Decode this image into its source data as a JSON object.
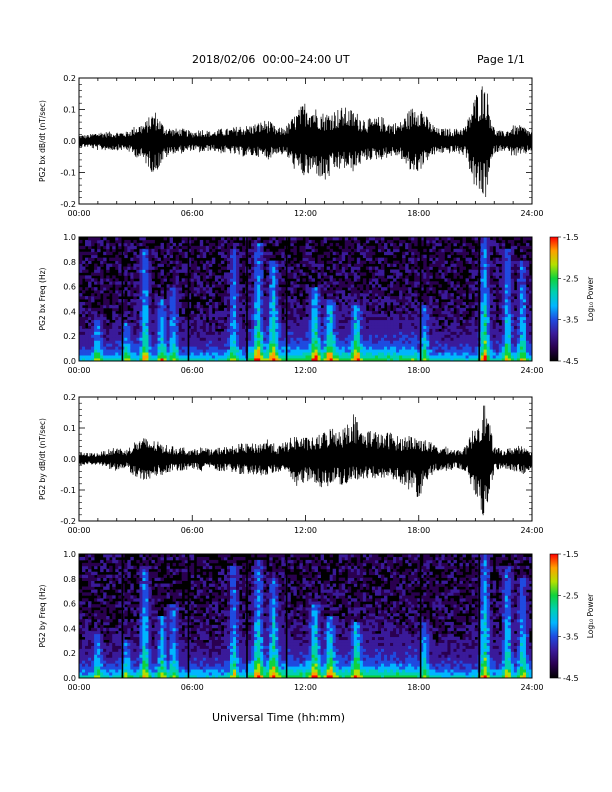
{
  "header": {
    "title": "2018/02/06  00:00–24:00 UT",
    "page": "Page 1/1"
  },
  "footer": {
    "xlabel": "Universal Time (hh:mm)"
  },
  "colors": {
    "trace": "#000000",
    "colormap": [
      "#000000",
      "#2a0050",
      "#3a1a9a",
      "#1f4ae0",
      "#00b6ff",
      "#00d0b0",
      "#10d23c",
      "#b4e000",
      "#ffa000",
      "#ff0000"
    ]
  },
  "chart_data": [
    {
      "type": "line",
      "id": "bx",
      "ylabel": "PG2 bx dB/dt (nT/sec)",
      "xlim": [
        0,
        24
      ],
      "ylim": [
        -0.2,
        0.2
      ],
      "x_ticks": [
        "00:00",
        "06:00",
        "12:00",
        "18:00",
        "24:00"
      ],
      "y_ticks": [
        "0.2",
        "0.1",
        "0.0",
        "-0.1",
        "-0.2"
      ],
      "series": [
        {
          "x": [
            0,
            0.5,
            1,
            1.5,
            2,
            2.5,
            3,
            3.5,
            4,
            4.5,
            5,
            5.5,
            6,
            6.5,
            7,
            7.5,
            8,
            8.5,
            9,
            9.5,
            10,
            10.5,
            11,
            11.5,
            12,
            12.5,
            13,
            13.5,
            14,
            14.5,
            15,
            15.5,
            16,
            16.5,
            17,
            17.5,
            18,
            18.5,
            19,
            19.5,
            20,
            20.5,
            21,
            21.5,
            22,
            22.5,
            23,
            23.5,
            24
          ],
          "upper": [
            0.02,
            0.02,
            0.03,
            0.03,
            0.03,
            0.03,
            0.05,
            0.06,
            0.1,
            0.05,
            0.04,
            0.04,
            0.03,
            0.04,
            0.03,
            0.04,
            0.04,
            0.05,
            0.05,
            0.06,
            0.07,
            0.04,
            0.05,
            0.09,
            0.13,
            0.11,
            0.09,
            0.1,
            0.11,
            0.1,
            0.08,
            0.07,
            0.08,
            0.06,
            0.06,
            0.1,
            0.13,
            0.07,
            0.04,
            0.04,
            0.04,
            0.05,
            0.15,
            0.2,
            0.04,
            0.03,
            0.05,
            0.05,
            0.03
          ],
          "lower": [
            -0.02,
            -0.02,
            -0.03,
            -0.03,
            -0.03,
            -0.03,
            -0.05,
            -0.07,
            -0.11,
            -0.06,
            -0.04,
            -0.04,
            -0.03,
            -0.04,
            -0.03,
            -0.04,
            -0.04,
            -0.05,
            -0.05,
            -0.05,
            -0.06,
            -0.04,
            -0.05,
            -0.1,
            -0.12,
            -0.1,
            -0.14,
            -0.1,
            -0.09,
            -0.1,
            -0.07,
            -0.06,
            -0.06,
            -0.05,
            -0.05,
            -0.1,
            -0.1,
            -0.06,
            -0.04,
            -0.04,
            -0.04,
            -0.05,
            -0.16,
            -0.2,
            -0.04,
            -0.03,
            -0.05,
            -0.05,
            -0.03
          ]
        }
      ]
    },
    {
      "type": "heatmap",
      "id": "bx-spec",
      "ylabel": "PG2 bx Freq (Hz)",
      "xlim": [
        0,
        24
      ],
      "ylim": [
        0,
        1
      ],
      "x_ticks": [
        "00:00",
        "06:00",
        "12:00",
        "18:00",
        "24:00"
      ],
      "y_ticks": [
        "1.0",
        "0.8",
        "0.6",
        "0.4",
        "0.2",
        "0.0"
      ],
      "colorbar": {
        "label": "Log₁₀ Power",
        "ticks": [
          "-1.5",
          "-2.5",
          "-3.5",
          "-4.5"
        ],
        "range": [
          -4.5,
          -1.5
        ]
      },
      "bursts": [
        {
          "t": 1.0,
          "intensity": 0.5,
          "height": 0.35
        },
        {
          "t": 2.5,
          "intensity": 0.5,
          "height": 0.3
        },
        {
          "t": 3.5,
          "intensity": 0.85,
          "height": 0.9
        },
        {
          "t": 4.4,
          "intensity": 0.7,
          "height": 0.5
        },
        {
          "t": 5.0,
          "intensity": 0.6,
          "height": 0.6
        },
        {
          "t": 8.2,
          "intensity": 0.7,
          "height": 0.9
        },
        {
          "t": 9.5,
          "intensity": 0.9,
          "height": 0.95
        },
        {
          "t": 10.3,
          "intensity": 0.85,
          "height": 0.8
        },
        {
          "t": 12.5,
          "intensity": 0.85,
          "height": 0.6
        },
        {
          "t": 13.3,
          "intensity": 0.8,
          "height": 0.5
        },
        {
          "t": 14.7,
          "intensity": 0.75,
          "height": 0.45
        },
        {
          "t": 18.3,
          "intensity": 0.6,
          "height": 0.45
        },
        {
          "t": 21.5,
          "intensity": 1.0,
          "height": 1.0
        },
        {
          "t": 22.7,
          "intensity": 0.8,
          "height": 0.9
        },
        {
          "t": 23.5,
          "intensity": 0.75,
          "height": 0.8
        }
      ],
      "gaps": [
        2.3,
        5.8,
        8.9,
        11.0,
        18.1,
        21.2
      ]
    },
    {
      "type": "line",
      "id": "by",
      "ylabel": "PG2 by dB/dt (nT/sec)",
      "xlim": [
        0,
        24
      ],
      "ylim": [
        -0.2,
        0.2
      ],
      "x_ticks": [
        "00:00",
        "06:00",
        "12:00",
        "18:00",
        "24:00"
      ],
      "y_ticks": [
        "0.2",
        "0.1",
        "0.0",
        "-0.1",
        "-0.2"
      ],
      "series": [
        {
          "x": [
            0,
            0.5,
            1,
            1.5,
            2,
            2.5,
            3,
            3.5,
            4,
            4.5,
            5,
            5.5,
            6,
            6.5,
            7,
            7.5,
            8,
            8.5,
            9,
            9.5,
            10,
            10.5,
            11,
            11.5,
            12,
            12.5,
            13,
            13.5,
            14,
            14.5,
            15,
            15.5,
            16,
            16.5,
            17,
            17.5,
            18,
            18.5,
            19,
            19.5,
            20,
            20.5,
            21,
            21.5,
            22,
            22.5,
            23,
            23.5,
            24
          ],
          "upper": [
            0.02,
            0.02,
            0.02,
            0.03,
            0.04,
            0.03,
            0.06,
            0.07,
            0.06,
            0.05,
            0.04,
            0.04,
            0.03,
            0.04,
            0.03,
            0.04,
            0.04,
            0.05,
            0.05,
            0.05,
            0.07,
            0.04,
            0.06,
            0.08,
            0.07,
            0.07,
            0.09,
            0.11,
            0.1,
            0.16,
            0.09,
            0.1,
            0.08,
            0.09,
            0.07,
            0.08,
            0.07,
            0.06,
            0.04,
            0.04,
            0.03,
            0.04,
            0.12,
            0.19,
            0.04,
            0.03,
            0.04,
            0.05,
            0.03
          ],
          "lower": [
            -0.02,
            -0.02,
            -0.02,
            -0.03,
            -0.04,
            -0.03,
            -0.06,
            -0.07,
            -0.06,
            -0.05,
            -0.04,
            -0.04,
            -0.03,
            -0.04,
            -0.03,
            -0.04,
            -0.04,
            -0.05,
            -0.05,
            -0.05,
            -0.06,
            -0.04,
            -0.05,
            -0.1,
            -0.07,
            -0.08,
            -0.1,
            -0.07,
            -0.09,
            -0.07,
            -0.07,
            -0.06,
            -0.07,
            -0.06,
            -0.08,
            -0.1,
            -0.14,
            -0.06,
            -0.04,
            -0.04,
            -0.03,
            -0.04,
            -0.12,
            -0.21,
            -0.04,
            -0.03,
            -0.04,
            -0.05,
            -0.03
          ]
        }
      ]
    },
    {
      "type": "heatmap",
      "id": "by-spec",
      "ylabel": "PG2 by Freq (Hz)",
      "xlim": [
        0,
        24
      ],
      "ylim": [
        0,
        1
      ],
      "x_ticks": [
        "00:00",
        "06:00",
        "12:00",
        "18:00",
        "24:00"
      ],
      "y_ticks": [
        "1.0",
        "0.8",
        "0.6",
        "0.4",
        "0.2",
        "0.0"
      ],
      "colorbar": {
        "label": "Log₁₀ Power",
        "ticks": [
          "-1.5",
          "-2.5",
          "-3.5",
          "-4.5"
        ],
        "range": [
          -4.5,
          -1.5
        ]
      },
      "bursts": [
        {
          "t": 1.0,
          "intensity": 0.5,
          "height": 0.35
        },
        {
          "t": 2.5,
          "intensity": 0.5,
          "height": 0.3
        },
        {
          "t": 3.5,
          "intensity": 0.85,
          "height": 0.9
        },
        {
          "t": 4.4,
          "intensity": 0.7,
          "height": 0.5
        },
        {
          "t": 5.0,
          "intensity": 0.6,
          "height": 0.6
        },
        {
          "t": 8.2,
          "intensity": 0.7,
          "height": 0.9
        },
        {
          "t": 9.5,
          "intensity": 0.9,
          "height": 0.95
        },
        {
          "t": 10.3,
          "intensity": 0.85,
          "height": 0.8
        },
        {
          "t": 12.5,
          "intensity": 0.85,
          "height": 0.6
        },
        {
          "t": 13.3,
          "intensity": 0.8,
          "height": 0.5
        },
        {
          "t": 14.7,
          "intensity": 0.75,
          "height": 0.45
        },
        {
          "t": 18.3,
          "intensity": 0.6,
          "height": 0.45
        },
        {
          "t": 21.5,
          "intensity": 1.0,
          "height": 1.0
        },
        {
          "t": 22.7,
          "intensity": 0.8,
          "height": 0.9
        },
        {
          "t": 23.5,
          "intensity": 0.75,
          "height": 0.8
        }
      ],
      "gaps": [
        2.3,
        5.8,
        8.9,
        11.0,
        18.1,
        21.2
      ]
    }
  ]
}
